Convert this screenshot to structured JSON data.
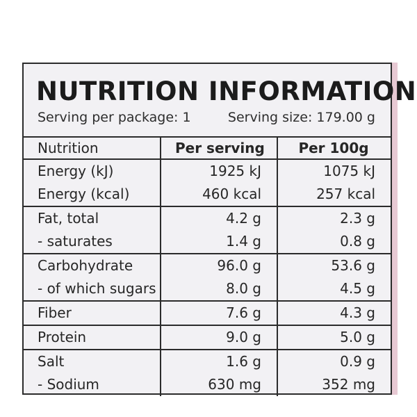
{
  "title": "NUTRITION INFORMATION",
  "serving_per_package": "Serving per package: 1",
  "serving_size": "Serving size: 179.00 g",
  "header": {
    "nutrition": "Nutrition",
    "per_serving": "Per serving",
    "per_100g": "Per 100g"
  },
  "groups": [
    {
      "rows": [
        {
          "name": "Energy (kJ)",
          "per_serving": "1925 kJ",
          "per_100g": "1075 kJ"
        },
        {
          "name": "Energy (kcal)",
          "per_serving": "460 kcal",
          "per_100g": "257 kcal"
        }
      ]
    },
    {
      "rows": [
        {
          "name": "Fat, total",
          "per_serving": "4.2 g",
          "per_100g": "2.3 g"
        },
        {
          "name": "- saturates",
          "per_serving": "1.4 g",
          "per_100g": "0.8 g"
        }
      ]
    },
    {
      "rows": [
        {
          "name": "Carbohydrate",
          "per_serving": "96.0 g",
          "per_100g": "53.6 g"
        },
        {
          "name": "- of which sugars",
          "per_serving": "8.0 g",
          "per_100g": "4.5 g"
        }
      ]
    },
    {
      "rows": [
        {
          "name": "Fiber",
          "per_serving": "7.6 g",
          "per_100g": "4.3 g"
        }
      ]
    },
    {
      "rows": [
        {
          "name": "Protein",
          "per_serving": "9.0 g",
          "per_100g": "5.0 g"
        }
      ]
    },
    {
      "rows": [
        {
          "name": "Salt",
          "per_serving": "1.6 g",
          "per_100g": "0.9 g"
        },
        {
          "name": "- Sodium",
          "per_serving": "630 mg",
          "per_100g": "352 mg"
        }
      ]
    }
  ]
}
